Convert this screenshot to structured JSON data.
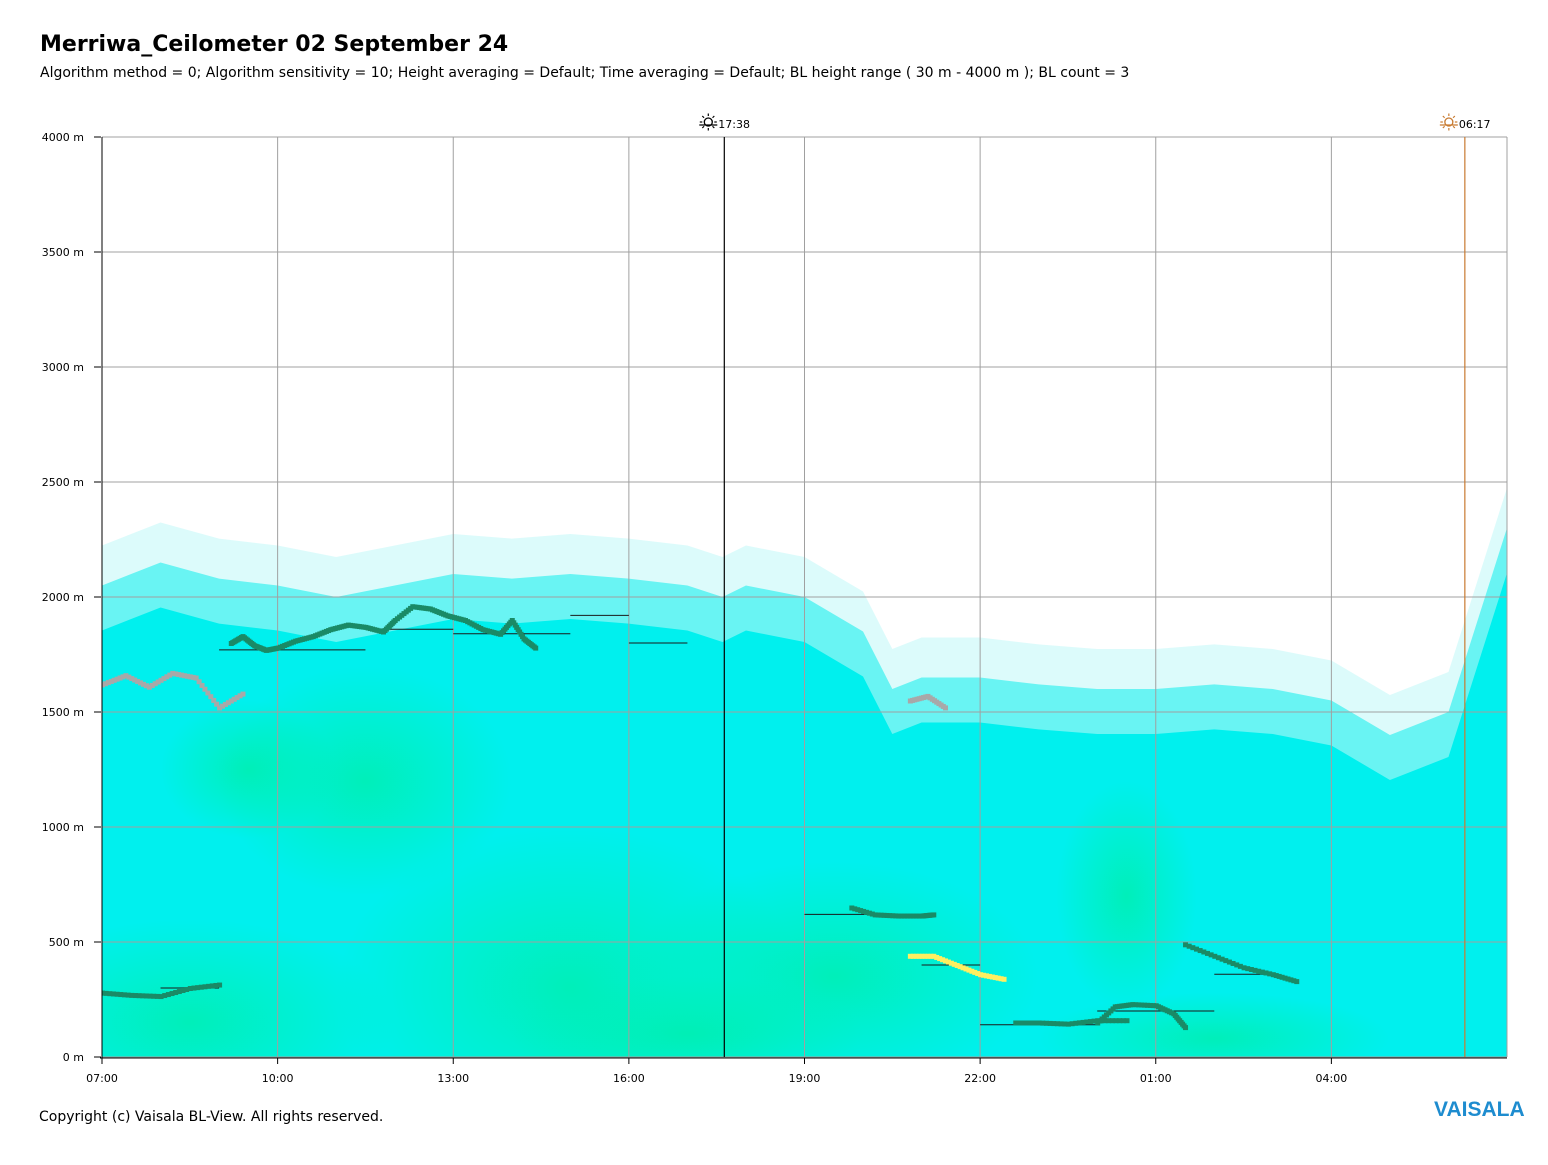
{
  "header": {
    "title": "Merriwa_Ceilometer 02 September 24",
    "subtitle": "Algorithm method = 0; Algorithm sensitivity = 10; Height averaging = Default; Time averaging = Default; BL height range ( 30 m - 4000 m ); BL count = 3"
  },
  "footer": {
    "copyright": "Copyright (c) Vaisala BL-View. All rights reserved.",
    "brand": "VAISALA"
  },
  "colors": {
    "grid": "#a0a0a0",
    "backscatter_low": "#00f0ee",
    "backscatter_mid": "#00efbf",
    "bl_layer": "#1a8a66",
    "bl_secondary": "#a8a8a8",
    "bl_highlight": "#ffef60",
    "sunset_line": "#000000",
    "sunrise_line": "#c87a30"
  },
  "chart_data": {
    "type": "heatmap",
    "title": "Merriwa_Ceilometer 02 September 24",
    "xlabel": "",
    "ylabel": "",
    "x_unit": "hours since 07:00",
    "xlim": [
      0,
      24
    ],
    "ylim": [
      0,
      4000
    ],
    "grid": true,
    "y_ticks": [
      {
        "value": 0,
        "label": "0 m"
      },
      {
        "value": 500,
        "label": "500 m"
      },
      {
        "value": 1000,
        "label": "1000 m"
      },
      {
        "value": 1500,
        "label": "1500 m"
      },
      {
        "value": 2000,
        "label": "2000 m"
      },
      {
        "value": 2500,
        "label": "2500 m"
      },
      {
        "value": 3000,
        "label": "3000 m"
      },
      {
        "value": 3500,
        "label": "3500 m"
      },
      {
        "value": 4000,
        "label": "4000 m"
      }
    ],
    "x_ticks": [
      {
        "value": 0,
        "label": "07:00"
      },
      {
        "value": 3,
        "label": "10:00"
      },
      {
        "value": 6,
        "label": "13:00"
      },
      {
        "value": 9,
        "label": "16:00"
      },
      {
        "value": 12,
        "label": "19:00"
      },
      {
        "value": 15,
        "label": "22:00"
      },
      {
        "value": 18,
        "label": "01:00"
      },
      {
        "value": 21,
        "label": "04:00"
      }
    ],
    "sun_events": [
      {
        "type": "sunset",
        "time": 10.63,
        "label": "17:38"
      },
      {
        "type": "sunrise",
        "time": 23.28,
        "label": "06:17"
      }
    ],
    "backscatter_top": {
      "x": [
        0,
        1,
        2,
        3,
        4,
        5,
        6,
        7,
        8,
        9,
        10,
        10.6,
        11,
        12,
        13,
        13.5,
        14,
        15,
        16,
        17,
        18,
        19,
        20,
        21,
        22,
        23,
        24
      ],
      "y": [
        2050,
        2150,
        2080,
        2050,
        2000,
        2050,
        2100,
        2080,
        2100,
        2080,
        2050,
        2000,
        2050,
        2000,
        1850,
        1600,
        1650,
        1650,
        1620,
        1600,
        1600,
        1620,
        1600,
        1550,
        1400,
        1500,
        2300
      ]
    },
    "bl_series": [
      {
        "role": "primary",
        "x": [
          2.2,
          2.4,
          2.6,
          2.8,
          3.0,
          3.3,
          3.6,
          3.9,
          4.2,
          4.5,
          4.8,
          5.0,
          5.3,
          5.6,
          5.9,
          6.2,
          6.5,
          6.8,
          7.0,
          7.2,
          7.4
        ],
        "y": [
          1800,
          1830,
          1790,
          1770,
          1780,
          1810,
          1830,
          1860,
          1880,
          1870,
          1850,
          1900,
          1960,
          1950,
          1920,
          1900,
          1860,
          1840,
          1900,
          1820,
          1780
        ]
      },
      {
        "role": "primary",
        "x": [
          0.0,
          0.5,
          1.0,
          1.5,
          2.0
        ],
        "y": [
          280,
          270,
          265,
          300,
          315
        ]
      },
      {
        "role": "primary",
        "x": [
          12.8,
          13.2,
          13.6,
          14.0,
          14.2
        ],
        "y": [
          650,
          620,
          615,
          615,
          620
        ]
      },
      {
        "role": "primary",
        "x": [
          15.6,
          16.0,
          16.5,
          17.0,
          17.5
        ],
        "y": [
          150,
          150,
          145,
          160,
          160
        ]
      },
      {
        "role": "primary",
        "x": [
          17.0,
          17.3,
          17.6,
          18.0,
          18.3,
          18.5
        ],
        "y": [
          150,
          220,
          230,
          225,
          190,
          130
        ]
      },
      {
        "role": "primary",
        "x": [
          18.5,
          19.0,
          19.5,
          20.0,
          20.4
        ],
        "y": [
          490,
          440,
          390,
          360,
          330
        ]
      },
      {
        "role": "secondary",
        "x": [
          0.0,
          0.4,
          0.8,
          1.2,
          1.6,
          2.0,
          2.4
        ],
        "y": [
          1620,
          1660,
          1610,
          1670,
          1650,
          1520,
          1580
        ]
      },
      {
        "role": "secondary",
        "x": [
          13.8,
          14.1,
          14.4
        ],
        "y": [
          1550,
          1570,
          1520
        ]
      },
      {
        "role": "highlight",
        "x": [
          13.8,
          14.2,
          14.6,
          15.0,
          15.4
        ],
        "y": [
          440,
          440,
          400,
          360,
          340
        ]
      }
    ],
    "hourly_bl_step": [
      {
        "x0": 2.0,
        "x1": 4.5,
        "y": 1770
      },
      {
        "x0": 4.5,
        "x1": 6.0,
        "y": 1860
      },
      {
        "x0": 6.0,
        "x1": 8.0,
        "y": 1840
      },
      {
        "x0": 8.0,
        "x1": 9.0,
        "y": 1920
      },
      {
        "x0": 9.0,
        "x1": 10.0,
        "y": 1800
      },
      {
        "x0": 1.0,
        "x1": 2.0,
        "y": 300
      },
      {
        "x0": 12.0,
        "x1": 14.0,
        "y": 620
      },
      {
        "x0": 14.0,
        "x1": 15.0,
        "y": 400
      },
      {
        "x0": 15.0,
        "x1": 17.0,
        "y": 140
      },
      {
        "x0": 17.0,
        "x1": 19.0,
        "y": 200
      },
      {
        "x0": 19.0,
        "x1": 20.0,
        "y": 360
      }
    ]
  }
}
